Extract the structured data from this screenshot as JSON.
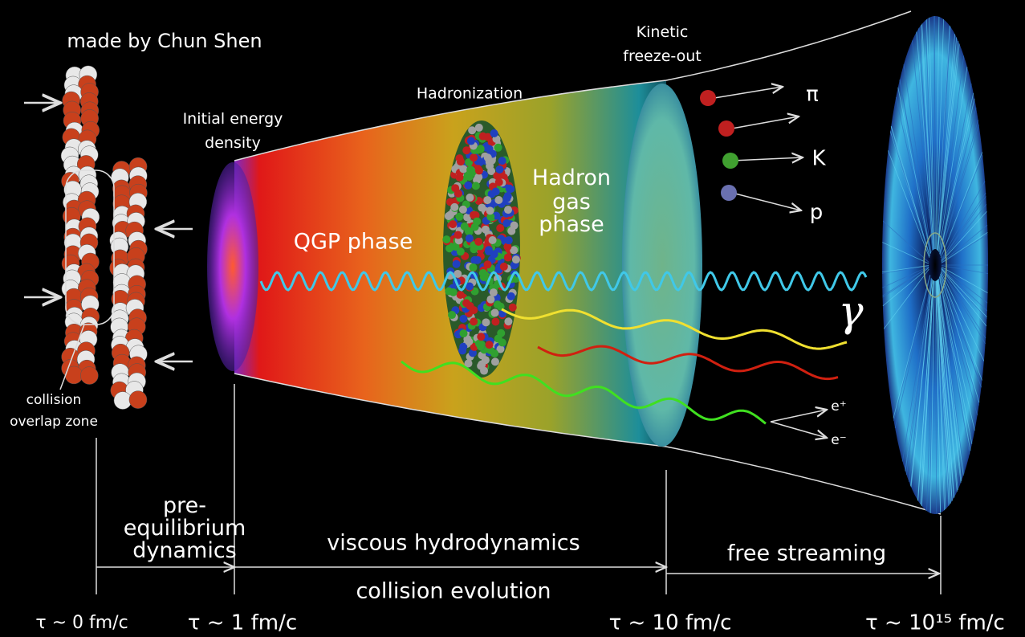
{
  "credit": "made by Chun Shen",
  "stages": {
    "initial_energy": {
      "lines": [
        "Initial energy",
        "density"
      ]
    },
    "qgp": "QGP phase",
    "hadronization": "Hadronization",
    "hadron_gas": {
      "lines": [
        "Hadron",
        "gas",
        "phase"
      ]
    },
    "kinetic_freeze_out": {
      "lines": [
        "Kinetic",
        "freeze-out"
      ]
    },
    "overlap_zone": {
      "lines": [
        "collision",
        "overlap zone"
      ]
    }
  },
  "particles": {
    "pion": "π",
    "kaon": "K",
    "proton": "p",
    "photon": "γ",
    "positron": "e⁺",
    "electron": "e⁻"
  },
  "timeline": {
    "pre_equilibrium": {
      "lines": [
        "pre-",
        "equilibrium",
        "dynamics"
      ]
    },
    "hydro": "viscous hydrodynamics",
    "free_streaming": "free streaming",
    "evolution": "collision evolution",
    "times": [
      "τ ~ 0 fm/c",
      "τ ~ 1 fm/c",
      "τ ~ 10 fm/c",
      "τ ~ 10¹⁵ fm/c"
    ]
  }
}
